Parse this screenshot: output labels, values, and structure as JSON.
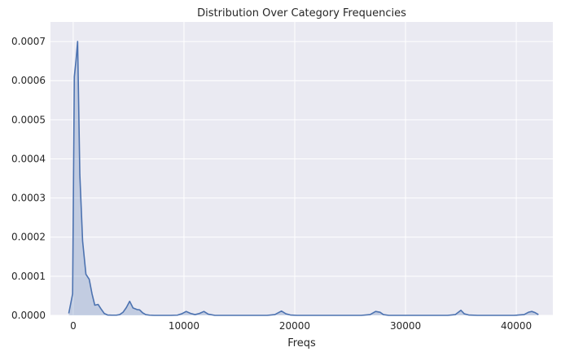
{
  "chart_data": {
    "type": "area",
    "title": "Distribution Over Category Frequencies",
    "xlabel": "Freqs",
    "ylabel": "",
    "xlim": [
      -2050,
      43300
    ],
    "ylim": [
      0,
      0.00075
    ],
    "xticks": [
      0,
      10000,
      20000,
      30000,
      40000
    ],
    "xtick_labels": [
      "0",
      "10000",
      "20000",
      "30000",
      "40000"
    ],
    "yticks": [
      0,
      0.0001,
      0.0002,
      0.0003,
      0.0004,
      0.0005,
      0.0006,
      0.0007
    ],
    "ytick_labels": [
      "0.0000",
      "0.0001",
      "0.0002",
      "0.0003",
      "0.0004",
      "0.0005",
      "0.0006",
      "0.0007"
    ],
    "grid": true,
    "background_color": "#eaeaf2",
    "grid_color": "#ffffff",
    "line_color": "#4c72b0",
    "fill_color": "#4c72b0",
    "series": [
      {
        "x": [
          -400,
          -50,
          100,
          250,
          400,
          600,
          850,
          1150,
          1450,
          1700,
          1950,
          2250,
          2500,
          2800,
          3100,
          3500,
          3900,
          4200,
          4500,
          4800,
          5100,
          5400,
          5750,
          6000,
          6250,
          6550,
          6900,
          7300,
          8000,
          8800,
          9400,
          9800,
          10200,
          10600,
          11000,
          11400,
          11800,
          12200,
          12800,
          14000,
          16000,
          17500,
          18200,
          18800,
          19200,
          19600,
          20200,
          22000,
          24000,
          26000,
          26800,
          27300,
          27700,
          28000,
          28500,
          30000,
          32000,
          33800,
          34500,
          35000,
          35300,
          35700,
          36500,
          38000,
          39800,
          40700,
          41100,
          41400,
          41700,
          42000
        ],
        "y": [
          5e-06,
          5.5e-05,
          0.00061,
          0.00065,
          0.0007,
          0.00036,
          0.00019,
          0.000105,
          9.2e-05,
          5.5e-05,
          2.6e-05,
          2.8e-05,
          1.7e-05,
          5e-06,
          1e-06,
          5e-07,
          5e-07,
          2e-06,
          8e-06,
          2e-05,
          3.6e-05,
          1.9e-05,
          1.5e-05,
          1.4e-05,
          7e-06,
          2e-06,
          5e-07,
          0.0,
          0.0,
          0.0,
          5e-07,
          4e-06,
          1e-05,
          5e-06,
          2e-06,
          5e-06,
          1e-05,
          3e-06,
          0.0,
          0.0,
          0.0,
          0.0,
          2e-06,
          1.1e-05,
          4e-06,
          1e-06,
          0.0,
          0.0,
          0.0,
          0.0,
          2e-06,
          1e-05,
          8e-06,
          2e-06,
          0.0,
          0.0,
          0.0,
          0.0,
          2e-06,
          1.3e-05,
          4e-06,
          1e-06,
          0.0,
          0.0,
          0.0,
          2e-06,
          8e-06,
          1e-05,
          7e-06,
          2e-06
        ]
      }
    ]
  }
}
